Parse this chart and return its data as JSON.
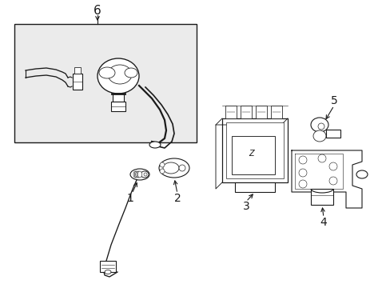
{
  "bg_color": "#ffffff",
  "line_color": "#1a1a1a",
  "box_fill": "#ebebeb",
  "fig_width": 4.89,
  "fig_height": 3.6,
  "dpi": 100,
  "label_fontsize": 10
}
